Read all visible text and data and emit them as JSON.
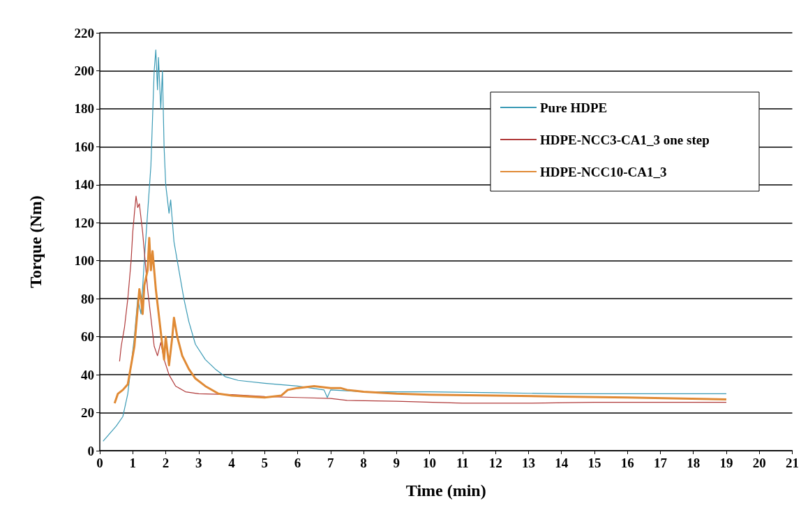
{
  "chart_data": {
    "type": "line",
    "xlabel": "Time (min)",
    "ylabel": "Torque (Nm)",
    "xlim": [
      0,
      21
    ],
    "xticks": [
      0,
      1,
      2,
      3,
      4,
      5,
      6,
      7,
      8,
      9,
      10,
      11,
      12,
      13,
      14,
      15,
      16,
      17,
      18,
      19,
      20,
      21
    ],
    "ylim": [
      0,
      220
    ],
    "yticks": [
      0,
      20,
      40,
      60,
      80,
      100,
      120,
      140,
      160,
      180,
      200,
      220
    ],
    "grid": "y",
    "legend": "top right",
    "marker": "none",
    "line_style": "solid",
    "series": [
      {
        "name": "Pure HDPE",
        "color": "#3a9ab5",
        "x": [
          0.1,
          0.5,
          0.7,
          0.85,
          0.95,
          1.05,
          1.15,
          1.25,
          1.35,
          1.45,
          1.55,
          1.6,
          1.65,
          1.7,
          1.75,
          1.78,
          1.85,
          1.9,
          1.95,
          2.0,
          2.1,
          2.15,
          2.25,
          2.4,
          2.55,
          2.7,
          2.9,
          3.2,
          3.5,
          3.8,
          4.2,
          5,
          6,
          6.8,
          6.9,
          7,
          8,
          10,
          12,
          14,
          16,
          19
        ],
        "values": [
          5,
          13,
          18,
          30,
          45,
          60,
          80,
          72,
          100,
          125,
          150,
          175,
          200,
          211,
          190,
          207,
          180,
          200,
          160,
          140,
          125,
          132,
          110,
          95,
          80,
          68,
          56,
          48,
          43,
          39,
          37,
          35.5,
          34,
          32,
          28,
          32,
          31,
          31,
          30.5,
          30,
          30,
          30
        ]
      },
      {
        "name": "HDPE-NCC3-CA1_3 one step",
        "color": "#b03a3a",
        "x": [
          0.6,
          0.65,
          0.75,
          0.85,
          0.95,
          1.0,
          1.05,
          1.1,
          1.15,
          1.2,
          1.3,
          1.4,
          1.45,
          1.55,
          1.65,
          1.75,
          1.85,
          1.95,
          2.1,
          2.3,
          2.6,
          3,
          4,
          5,
          6,
          7,
          7.5,
          9,
          11,
          13,
          15,
          19
        ],
        "values": [
          47,
          55,
          65,
          80,
          100,
          115,
          125,
          134,
          128,
          130,
          115,
          95,
          85,
          70,
          55,
          50,
          57,
          48,
          40,
          34,
          31,
          30,
          29.5,
          28.5,
          28,
          27.5,
          26.5,
          26,
          25,
          25,
          25.5,
          25.5
        ]
      },
      {
        "name": "HDPE-NCC10-CA1_3",
        "color": "#e08a35",
        "x": [
          0.45,
          0.55,
          0.7,
          0.85,
          0.95,
          1.05,
          1.1,
          1.2,
          1.25,
          1.3,
          1.35,
          1.45,
          1.5,
          1.55,
          1.6,
          1.7,
          1.8,
          1.9,
          1.95,
          2.0,
          2.1,
          2.2,
          2.25,
          2.35,
          2.5,
          2.7,
          2.9,
          3.2,
          3.6,
          4,
          5,
          5.5,
          5.7,
          6,
          6.5,
          7,
          7.3,
          7.5,
          8,
          9,
          10,
          12,
          14,
          16,
          19
        ],
        "values": [
          25,
          30,
          32,
          35,
          45,
          55,
          65,
          85,
          80,
          72,
          87,
          95,
          112,
          95,
          105,
          85,
          70,
          55,
          48,
          60,
          45,
          60,
          70,
          60,
          50,
          43,
          38,
          34,
          30,
          29,
          28,
          29,
          32,
          33,
          34,
          33,
          33,
          32,
          31,
          30,
          29.5,
          29,
          28.5,
          28,
          27
        ]
      }
    ]
  }
}
